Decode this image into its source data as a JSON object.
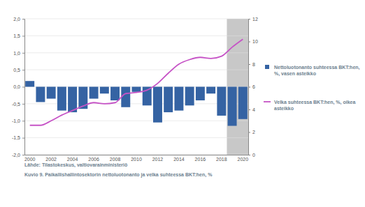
{
  "chart_data": {
    "type": "bar",
    "title": "Kuvio 9. Paikallishallintosektorin nettoluotonanto ja velka suhteessa BKT:hen, %",
    "annotations": [
      "Lähde: Tilastokeskus, valtiovarainministeriö"
    ],
    "categories": [
      "2000",
      null,
      "2002",
      null,
      "2004",
      null,
      "2006",
      null,
      "2008",
      null,
      "2010",
      null,
      "2012",
      null,
      "2014",
      null,
      "2016",
      null,
      "2018",
      null,
      "2020"
    ],
    "series": [
      {
        "name": "Nettoluotonanto suhteessa BKT:hen, %, vasen asteikko",
        "type": "bar",
        "axis": "y",
        "color": "#3563a3",
        "values": [
          0.17,
          -0.45,
          -0.35,
          -0.7,
          -0.75,
          -0.65,
          -0.35,
          -0.2,
          -0.4,
          -0.6,
          -0.15,
          -0.55,
          -1.05,
          -0.75,
          -0.7,
          -0.55,
          -0.4,
          -0.2,
          -0.85,
          -1.15,
          -0.95
        ]
      },
      {
        "name": "Velka suhteessa BKT:hen, %, oikea asteikko",
        "type": "line",
        "axis": "y2",
        "color": "#c653c6",
        "values": [
          2.6,
          2.6,
          3.0,
          3.5,
          3.9,
          4.3,
          4.6,
          4.5,
          4.6,
          5.4,
          5.5,
          5.7,
          6.3,
          7.2,
          8.0,
          8.4,
          8.6,
          8.5,
          8.7,
          9.5,
          10.2
        ]
      }
    ],
    "ylim": [
      -2,
      2
    ],
    "yticks": [
      {
        "value": 2,
        "label": "2,0"
      },
      {
        "value": 1.5,
        "label": "1,5"
      },
      {
        "value": 1,
        "label": "1,0"
      },
      {
        "value": 0.5,
        "label": "0,5"
      },
      {
        "value": 0,
        "label": "0,0"
      },
      {
        "value": -0.5,
        "label": "-0,5"
      },
      {
        "value": -1,
        "label": "-1,0"
      },
      {
        "value": -1.5,
        "label": "-1,5"
      },
      {
        "value": -2,
        "label": "-2,0"
      }
    ],
    "y2lim": [
      0,
      12
    ],
    "y2ticks": [
      0,
      2,
      4,
      6,
      8,
      10,
      12
    ],
    "grid": true
  }
}
